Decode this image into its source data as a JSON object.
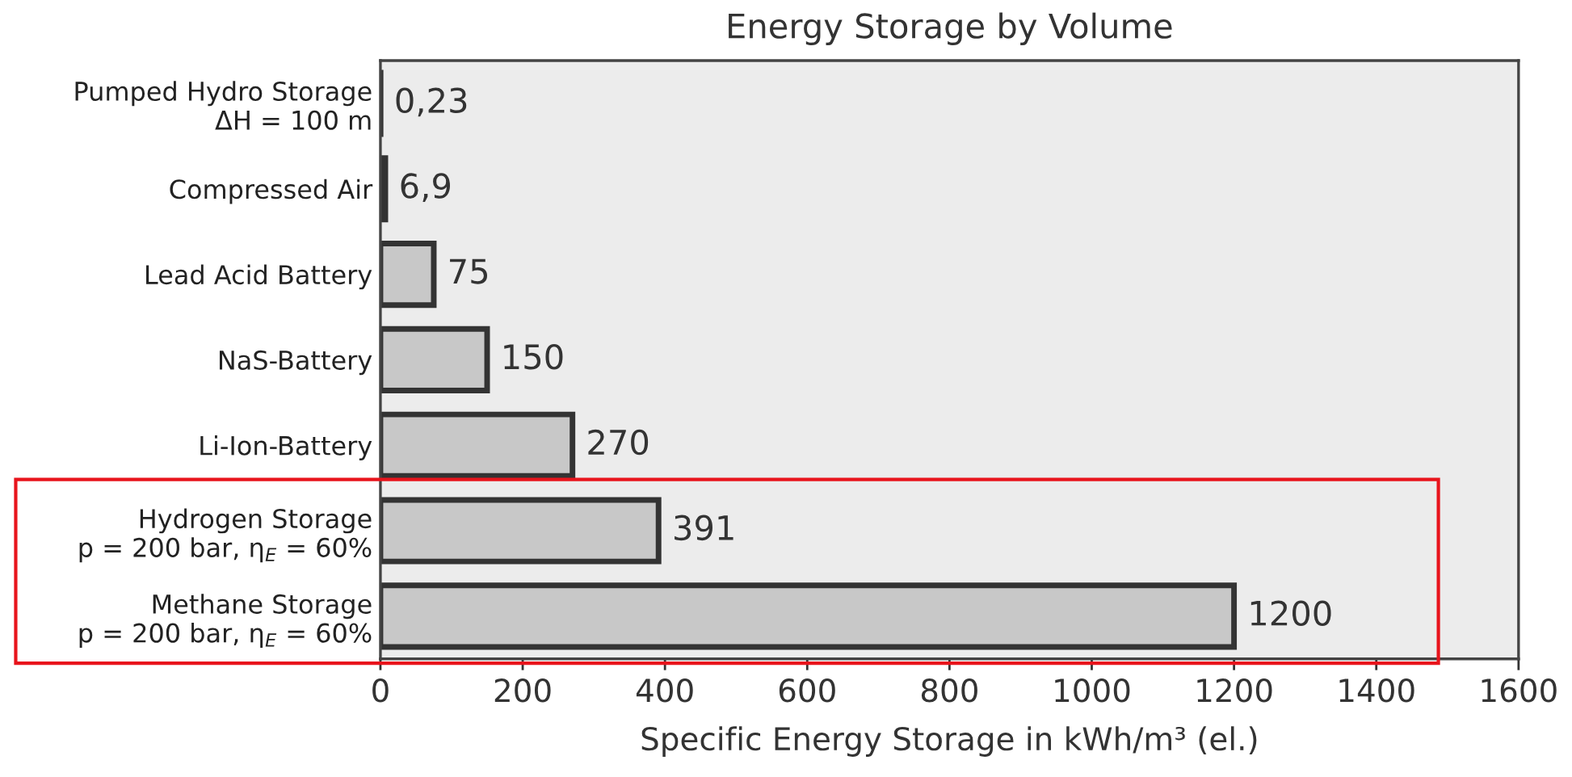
{
  "chart_data": {
    "type": "bar",
    "orientation": "horizontal",
    "title": "Energy Storage by Volume",
    "xlabel": "Specific Energy Storage in kWh/m³ (el.)",
    "categories": [
      "Pumped Hydro Storage\nΔH = 100 m",
      "Compressed Air",
      "Lead Acid Battery",
      "NaS-Battery",
      "Li-Ion-Battery",
      "Hydrogen Storage\np = 200 bar, η$_{E}$ = 60%",
      "Methane Storage\np = 200 bar, η$_{E}$ = 60%"
    ],
    "values": [
      0.23,
      6.9,
      75,
      150,
      270,
      391,
      1200
    ],
    "value_labels": [
      "0,23",
      "6,9",
      "75",
      "150",
      "270",
      "391",
      "1200"
    ],
    "color": "#c8c8c8",
    "xlim": [
      0,
      1600
    ],
    "xticks": [
      0,
      200,
      400,
      600,
      800,
      1000,
      1200,
      1400,
      1600
    ],
    "grid": false,
    "legend": false
  }
}
